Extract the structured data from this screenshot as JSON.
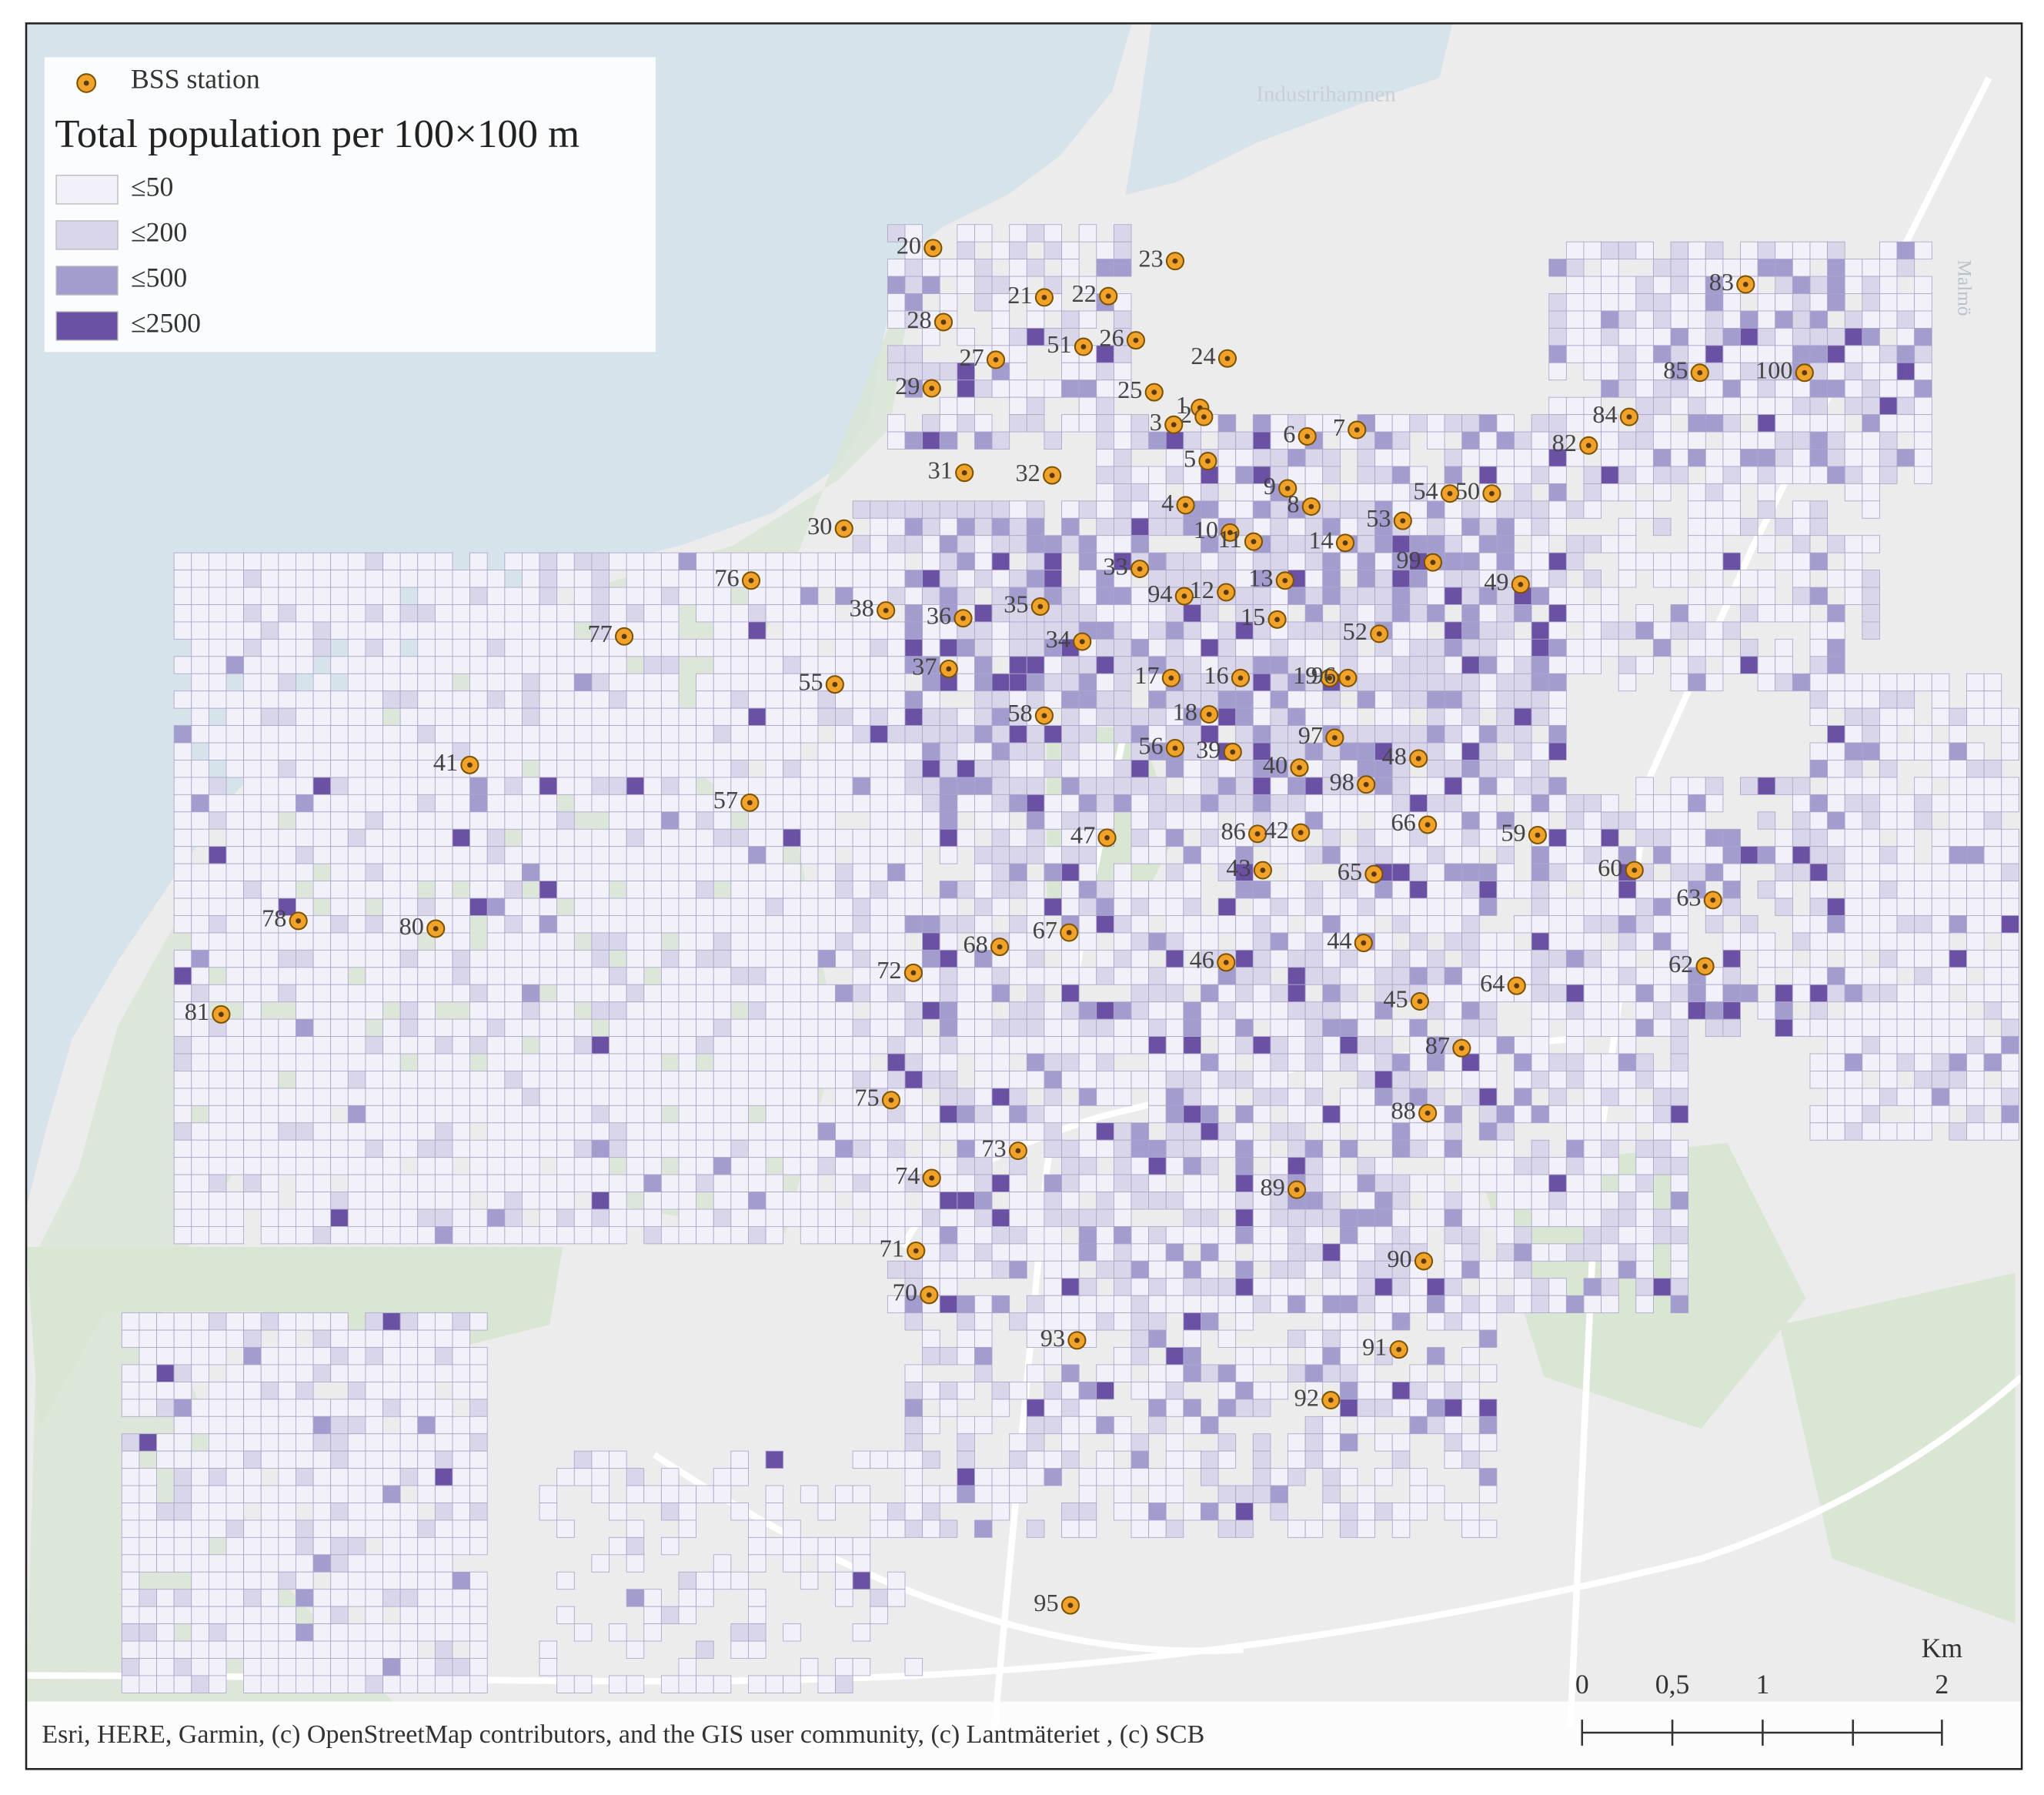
{
  "legend": {
    "station": "BSS station",
    "title": "Total population per 100×100 m",
    "classes": [
      {
        "label": "≤50",
        "color": "#f2f0f8"
      },
      {
        "label": "≤200",
        "color": "#d9d6ea"
      },
      {
        "label": "≤500",
        "color": "#a39dcf"
      },
      {
        "label": "≤2500",
        "color": "#6a51a3"
      }
    ]
  },
  "place_labels": [
    "Industrihamnen",
    "Malmö"
  ],
  "stations": [
    "20",
    "21",
    "22",
    "23",
    "28",
    "27",
    "51",
    "26",
    "24",
    "29",
    "25",
    "1",
    "2",
    "3",
    "6",
    "7",
    "5",
    "31",
    "32",
    "9",
    "8",
    "4",
    "54",
    "50",
    "53",
    "30",
    "10",
    "11",
    "14",
    "99",
    "33",
    "13",
    "49",
    "76",
    "94",
    "12",
    "35",
    "38",
    "36",
    "15",
    "52",
    "77",
    "34",
    "37",
    "17",
    "16",
    "19",
    "96",
    "55",
    "58",
    "18",
    "97",
    "56",
    "39",
    "48",
    "41",
    "40",
    "98",
    "57",
    "47",
    "86",
    "42",
    "66",
    "59",
    "43",
    "65",
    "60",
    "63",
    "78",
    "80",
    "67",
    "68",
    "44",
    "72",
    "46",
    "62",
    "64",
    "45",
    "81",
    "87",
    "75",
    "88",
    "73",
    "74",
    "89",
    "71",
    "90",
    "70",
    "93",
    "91",
    "92",
    "95",
    "83",
    "85",
    "100",
    "84",
    "82"
  ],
  "scale_bar": {
    "unit": "Km",
    "ticks": [
      "0",
      "0,5",
      "1",
      "2"
    ]
  },
  "attribution": "Esri, HERE, Garmin, (c) OpenStreetMap contributors, and the GIS user community, (c) Lantmäteriet , (c) SCB"
}
